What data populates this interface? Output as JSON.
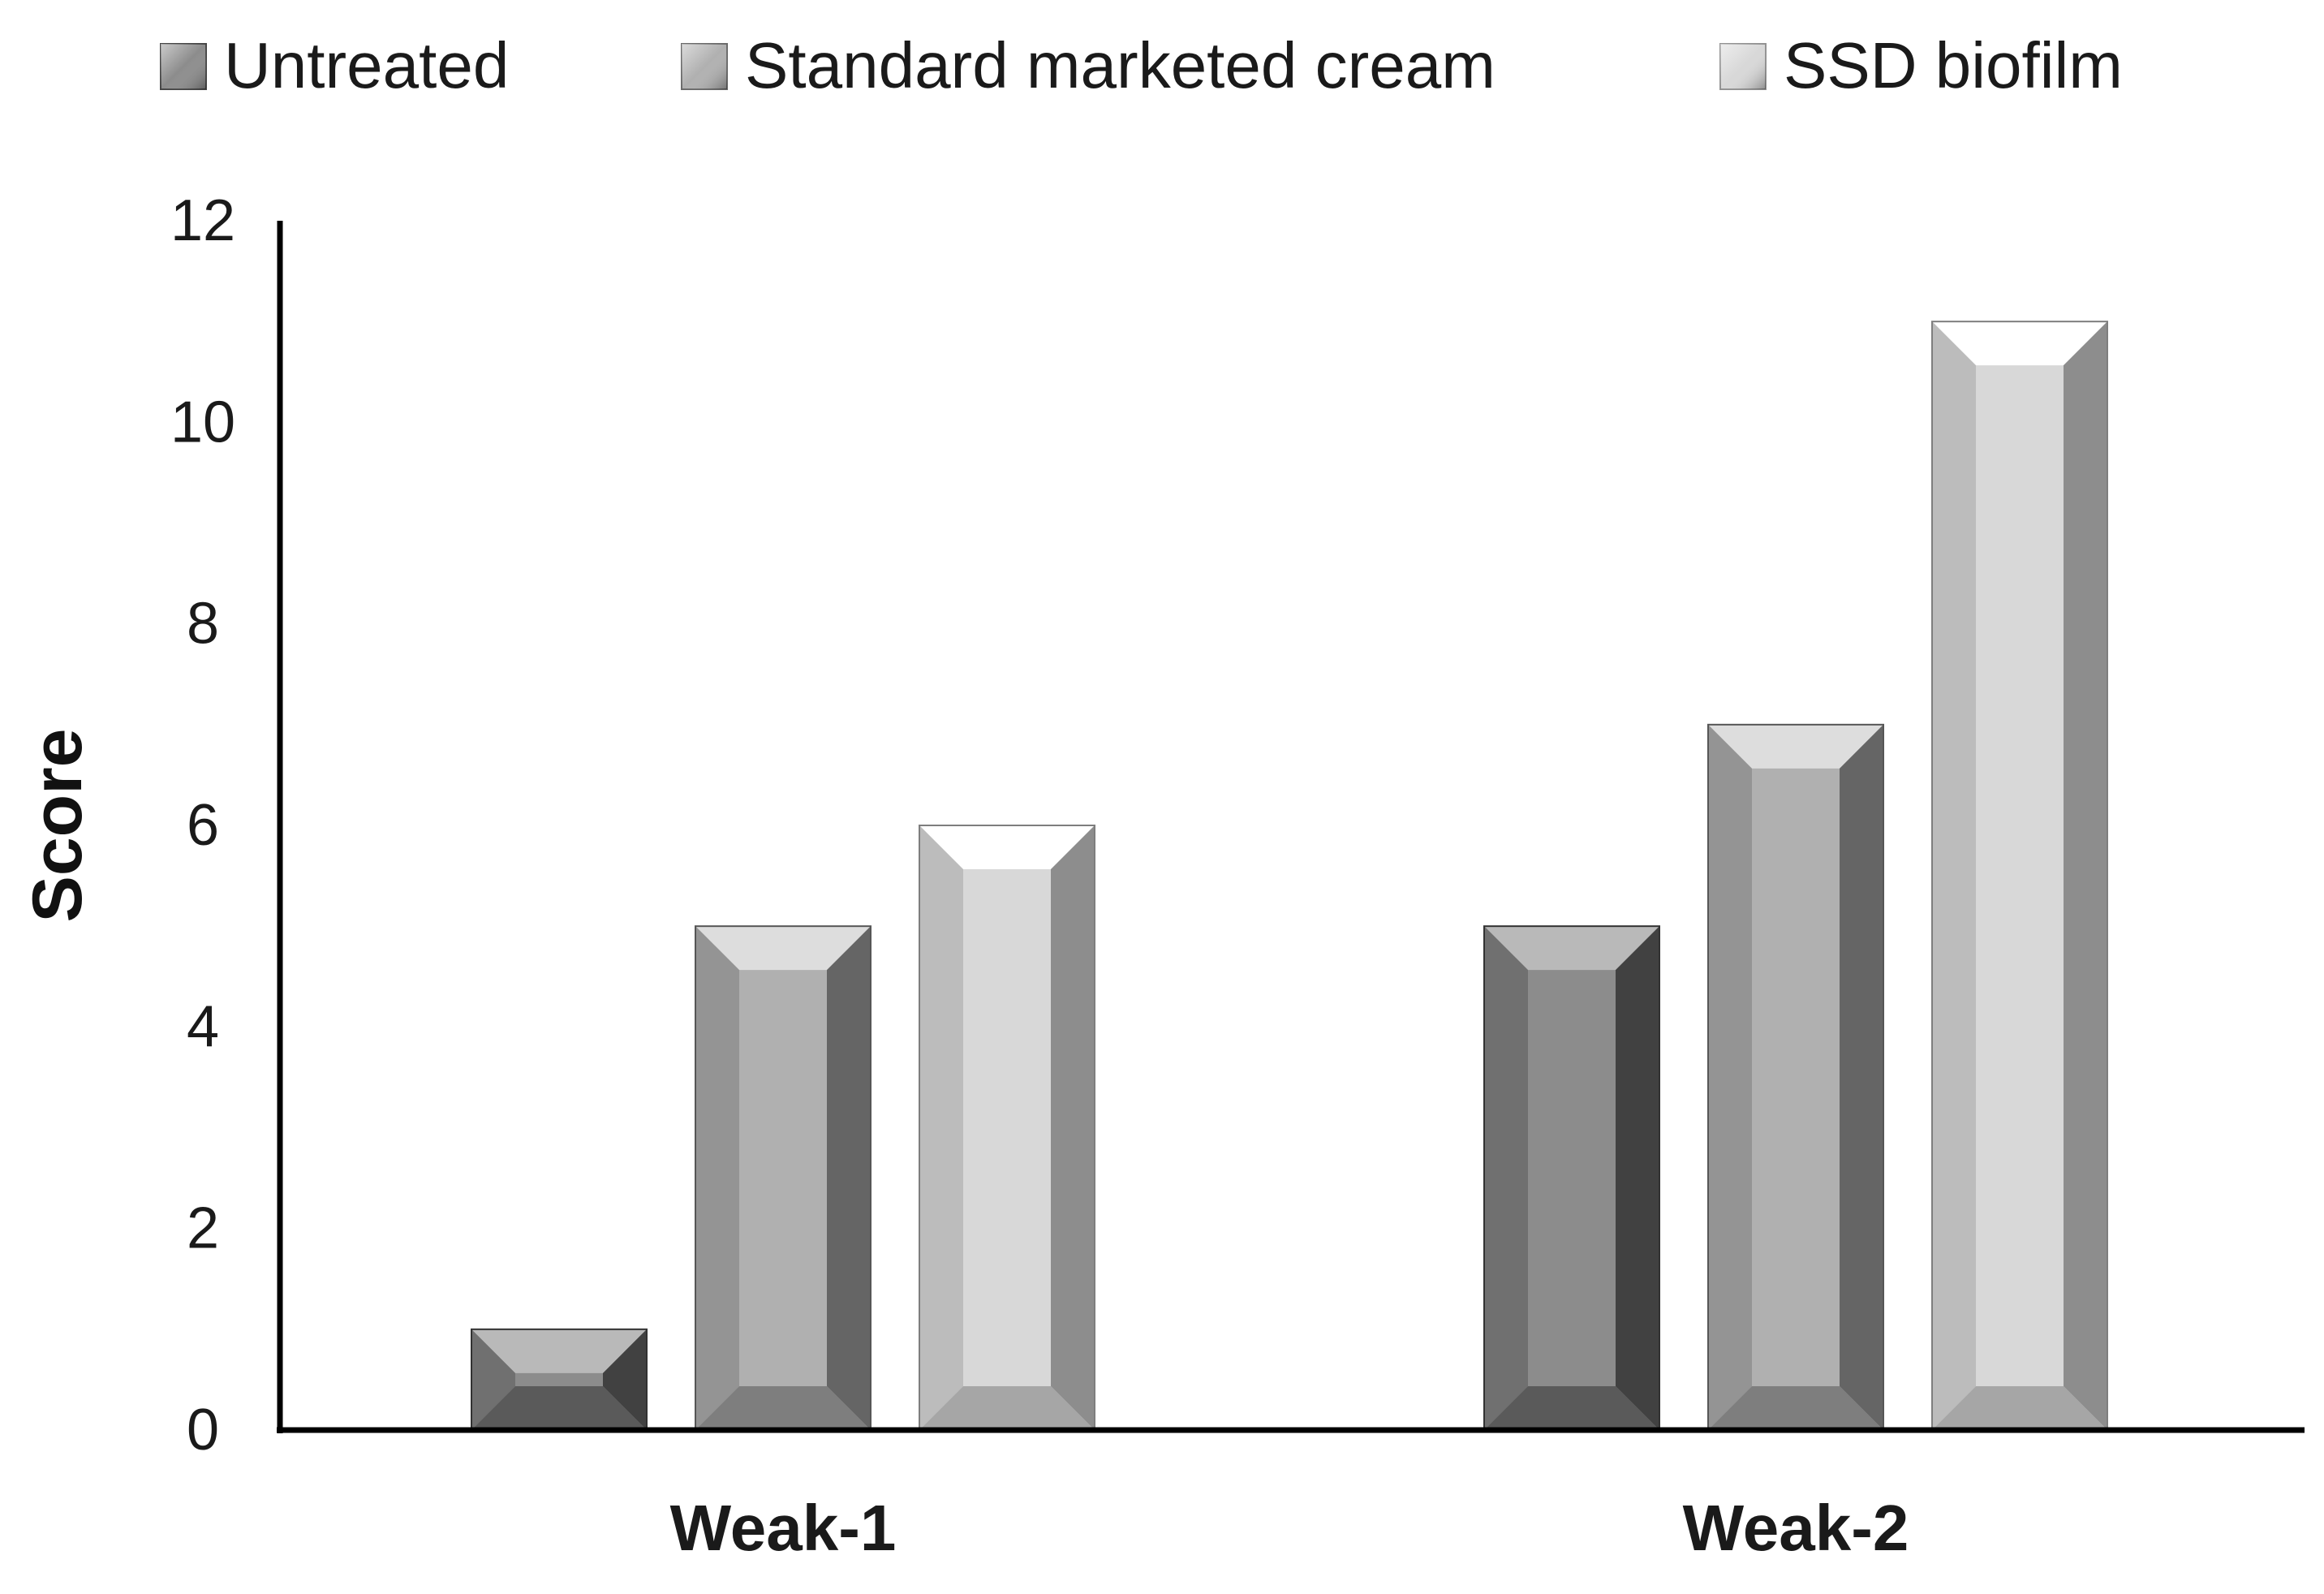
{
  "chart_data": {
    "type": "bar",
    "title": "",
    "xlabel": "",
    "ylabel": "Score",
    "ylim": [
      0,
      12
    ],
    "yticks": [
      0,
      2,
      4,
      6,
      8,
      10,
      12
    ],
    "categories": [
      "Weak-1",
      "Weak-2"
    ],
    "series": [
      {
        "name": "Untreated",
        "values": [
          1,
          5
        ],
        "color": "#8c8c8c"
      },
      {
        "name": "Standard marketed cream",
        "values": [
          5,
          7
        ],
        "color": "#b0b0b0"
      },
      {
        "name": "SSD biofilm",
        "values": [
          6,
          11
        ],
        "color": "#d8d8d8"
      }
    ],
    "legend_position": "top",
    "grid": false
  }
}
